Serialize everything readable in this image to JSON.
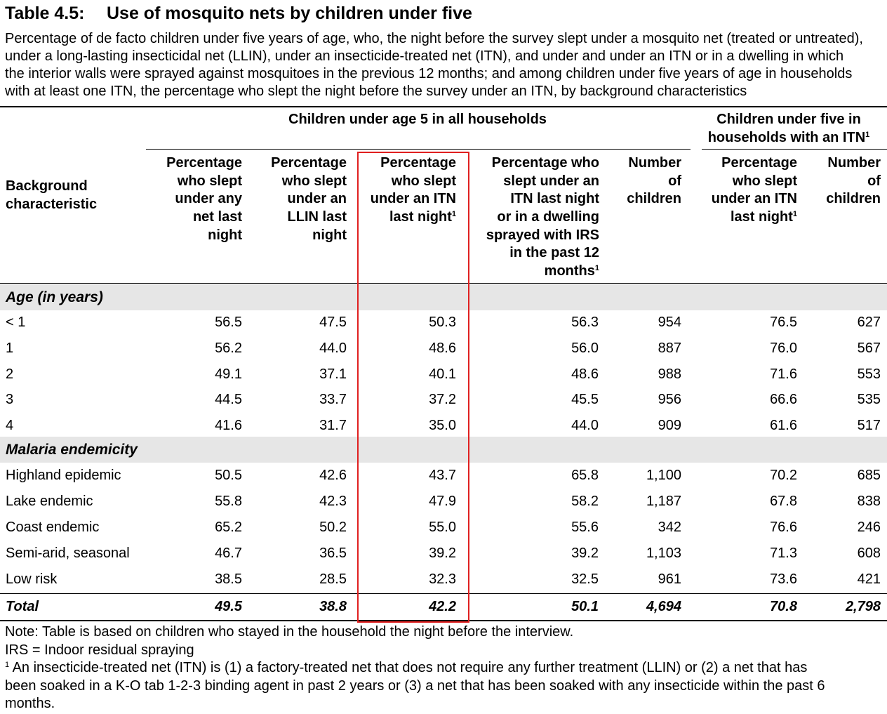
{
  "table": {
    "number": "Table 4.5:",
    "title": "Use of mosquito nets by children under five",
    "description_lines": [
      "Percentage of de facto children under five years of age, who, the night before the survey slept under a mosquito net (treated or untreated),",
      "under a long-lasting insecticidal net (LLIN), under an insecticide-treated net (ITN), and under and under an ITN or in a dwelling in which",
      "the interior walls were sprayed against mosquitoes in the previous 12 months; and among children under five years of age in households",
      "with at least one ITN, the percentage who slept the night before the survey under an ITN, by background characteristics"
    ]
  },
  "headers": {
    "group_all": "Children under age 5 in all households",
    "group_itn_lines": [
      "Children under five in",
      "households with an ITN"
    ],
    "group_itn_sup": "1",
    "background_lines": [
      "Background",
      "characteristic"
    ],
    "col1_lines": [
      "Percentage",
      "who slept",
      "under any",
      "net last",
      "night"
    ],
    "col2_lines": [
      "Percentage",
      "who slept",
      "under an",
      "LLIN last",
      "night"
    ],
    "col3_lines": [
      "Percentage",
      "who slept",
      "under an ITN",
      "last night"
    ],
    "col3_sup": "1",
    "col4_lines": [
      "Percentage who",
      "slept under an",
      "ITN last night",
      "or in a dwelling",
      "sprayed with IRS",
      "in the past 12",
      "months"
    ],
    "col4_sup": "1",
    "col5_lines": [
      "Number",
      "of",
      "children"
    ],
    "col6_lines": [
      "Percentage",
      "who slept",
      "under an ITN",
      "last night"
    ],
    "col6_sup": "1",
    "col7_lines": [
      "Number",
      "of",
      "children"
    ]
  },
  "sections": [
    {
      "label": "Age (in years)",
      "rows": [
        {
          "label": "< 1",
          "values": [
            "56.5",
            "47.5",
            "50.3",
            "56.3",
            "954",
            "76.5",
            "627"
          ]
        },
        {
          "label": "1",
          "values": [
            "56.2",
            "44.0",
            "48.6",
            "56.0",
            "887",
            "76.0",
            "567"
          ]
        },
        {
          "label": "2",
          "values": [
            "49.1",
            "37.1",
            "40.1",
            "48.6",
            "988",
            "71.6",
            "553"
          ]
        },
        {
          "label": "3",
          "values": [
            "44.5",
            "33.7",
            "37.2",
            "45.5",
            "956",
            "66.6",
            "535"
          ]
        },
        {
          "label": "4",
          "values": [
            "41.6",
            "31.7",
            "35.0",
            "44.0",
            "909",
            "61.6",
            "517"
          ]
        }
      ]
    },
    {
      "label": "Malaria endemicity",
      "rows": [
        {
          "label": "Highland epidemic",
          "values": [
            "50.5",
            "42.6",
            "43.7",
            "65.8",
            "1,100",
            "70.2",
            "685"
          ]
        },
        {
          "label": "Lake endemic",
          "values": [
            "55.8",
            "42.3",
            "47.9",
            "58.2",
            "1,187",
            "67.8",
            "838"
          ]
        },
        {
          "label": "Coast endemic",
          "values": [
            "65.2",
            "50.2",
            "55.0",
            "55.6",
            "342",
            "76.6",
            "246"
          ]
        },
        {
          "label": "Semi-arid, seasonal",
          "values": [
            "46.7",
            "36.5",
            "39.2",
            "39.2",
            "1,103",
            "71.3",
            "608"
          ]
        },
        {
          "label": "Low risk",
          "values": [
            "38.5",
            "28.5",
            "32.3",
            "32.5",
            "961",
            "73.6",
            "421"
          ]
        }
      ]
    }
  ],
  "total": {
    "label": "Total",
    "values": [
      "49.5",
      "38.8",
      "42.2",
      "50.1",
      "4,694",
      "70.8",
      "2,798"
    ]
  },
  "notes": {
    "line1": "Note: Table is based on children who stayed in the household the night before the interview.",
    "line2": " IRS = Indoor residual spraying",
    "footnote_sup": "1",
    "footnote_lines": [
      " An insecticide-treated net (ITN) is (1) a factory-treated net that does not require any further treatment (LLIN) or (2) a net that has",
      "been soaked in a K-O tab 1-2-3 binding agent in past 2 years or (3) a net that has been soaked with any insecticide within the past 6",
      "months."
    ]
  },
  "colors": {
    "highlight_box": "#e02020",
    "section_band": "#e6e6e6"
  }
}
